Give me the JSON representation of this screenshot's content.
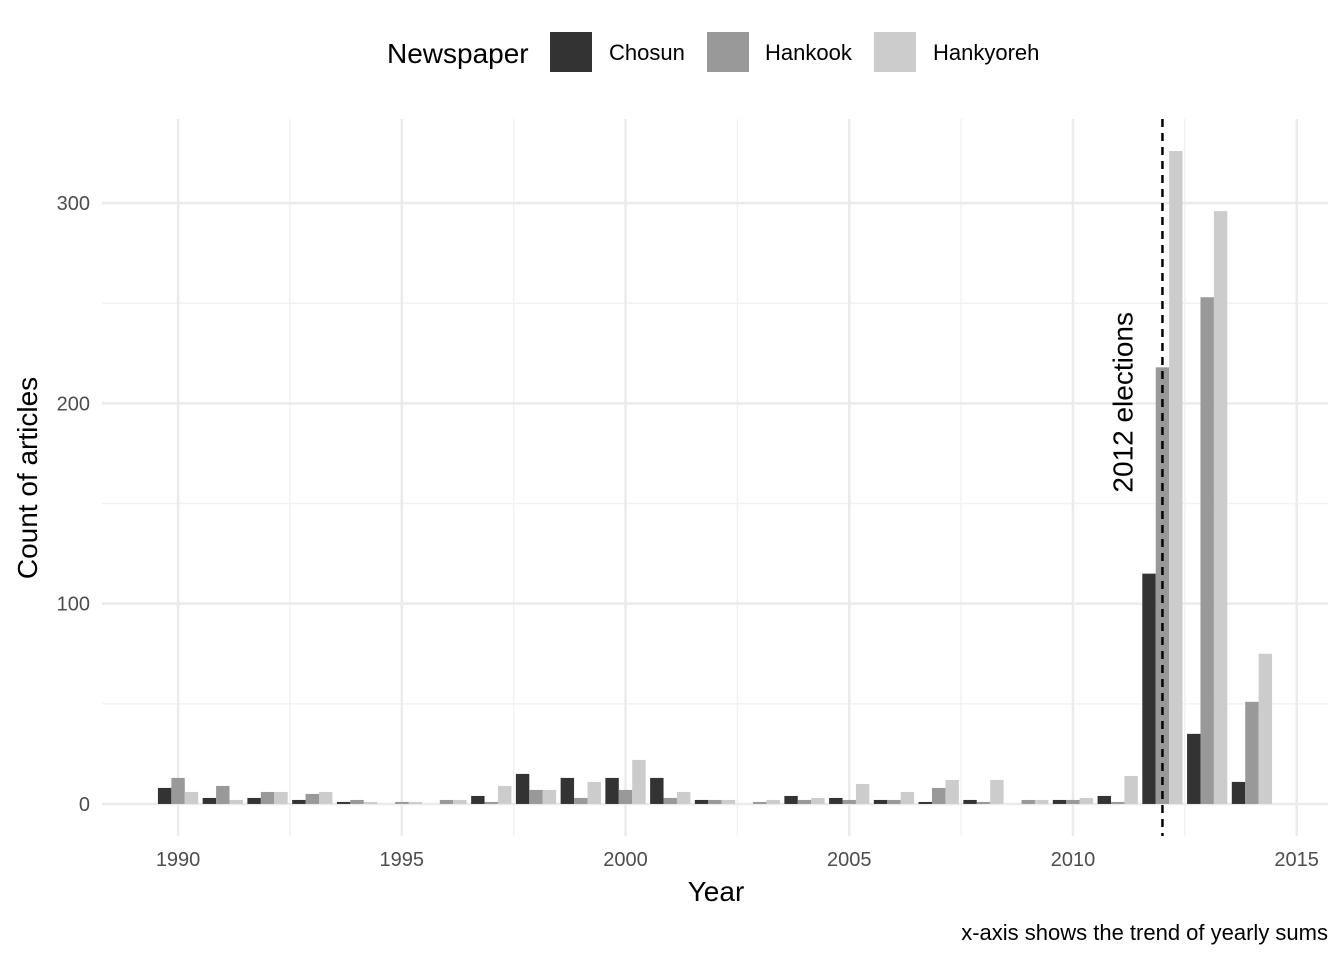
{
  "chart_data": {
    "type": "bar",
    "xlabel": "Year",
    "ylabel": "Count of articles",
    "caption": "x-axis shows the trend of yearly sums",
    "legend": {
      "title": "Newspaper",
      "position": "top"
    },
    "xlim": [
      1988.3,
      2015.7
    ],
    "ylim": [
      -16,
      342
    ],
    "x_ticks": [
      1990,
      1995,
      2000,
      2005,
      2010,
      2015
    ],
    "y_ticks": [
      0,
      100,
      200,
      300
    ],
    "grid": true,
    "x": [
      1990,
      1991,
      1992,
      1993,
      1994,
      1995,
      1996,
      1997,
      1998,
      1999,
      2000,
      2001,
      2002,
      2003,
      2004,
      2005,
      2006,
      2007,
      2008,
      2009,
      2010,
      2011,
      2012,
      2013,
      2014
    ],
    "series": [
      {
        "name": "Chosun",
        "color": "#333333",
        "values": [
          8,
          3,
          3,
          2,
          1,
          0,
          0,
          4,
          15,
          13,
          13,
          13,
          2,
          0,
          4,
          3,
          2,
          1,
          2,
          0,
          2,
          4,
          115,
          35,
          11
        ]
      },
      {
        "name": "Hankook",
        "color": "#999999",
        "values": [
          13,
          9,
          6,
          5,
          2,
          1,
          2,
          1,
          7,
          3,
          7,
          3,
          2,
          1,
          2,
          2,
          2,
          8,
          1,
          2,
          2,
          1,
          218,
          253,
          51
        ]
      },
      {
        "name": "Hankyoreh",
        "color": "#cccccc",
        "values": [
          6,
          2,
          6,
          6,
          1,
          1,
          2,
          9,
          7,
          11,
          22,
          6,
          2,
          2,
          3,
          10,
          6,
          12,
          12,
          2,
          3,
          14,
          326,
          296,
          75
        ]
      }
    ],
    "annotations": [
      {
        "type": "vline",
        "x": 2012,
        "style": "dashed",
        "text": "2012 elections"
      }
    ]
  }
}
